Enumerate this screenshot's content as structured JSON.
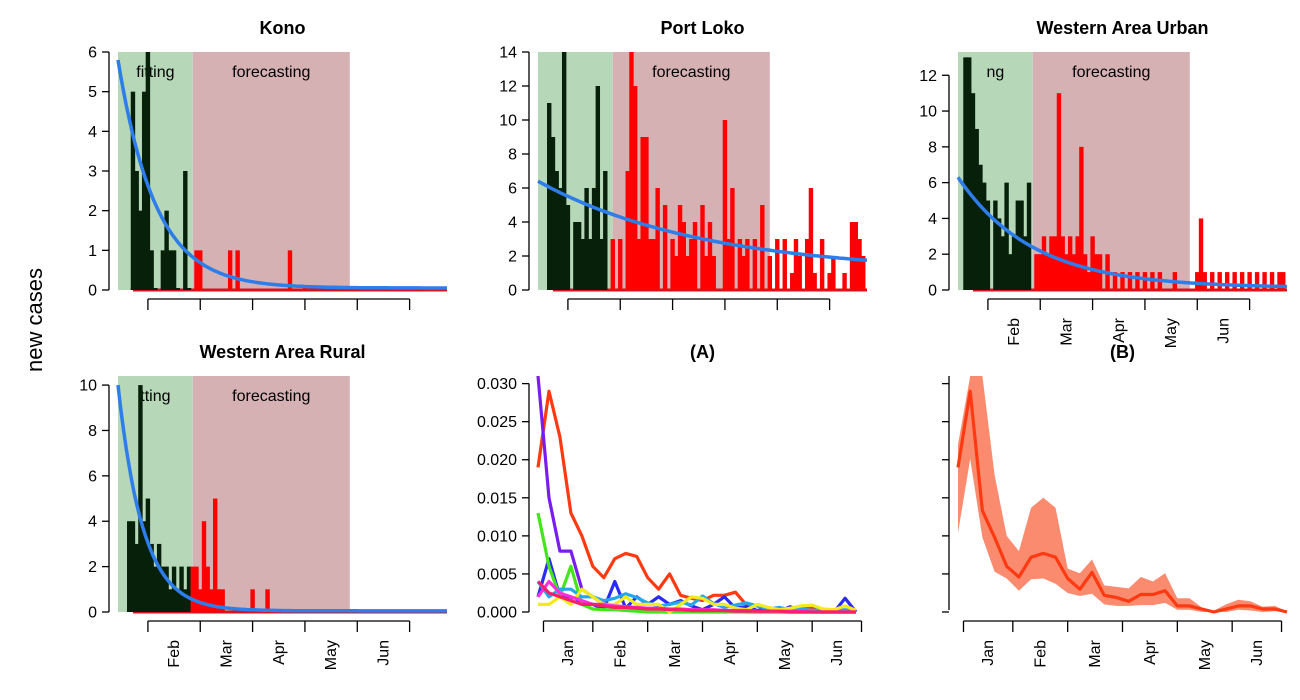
{
  "figure": {
    "ylabel": "new cases"
  },
  "colors": {
    "fit_region": "#b6d7b8",
    "forecast_region": "#d5b1b4",
    "observed_fit": "#06200a",
    "observed_forecast": "#ff0000",
    "trend": "#2d7dea",
    "band": "#fa8b6e",
    "mean_line": "#ff3a12"
  },
  "chart_data": [
    {
      "type": "bar",
      "title": "Kono",
      "fit_label": "fitting",
      "forecast_label": "forecasting",
      "fit_range": [
        0,
        10
      ],
      "forecast_range": [
        10,
        31
      ],
      "xlim": [
        0,
        44
      ],
      "ylim": [
        0,
        6
      ],
      "yticks": [
        "0",
        "1",
        "2",
        "3",
        "4",
        "5",
        "6"
      ],
      "xticks_at": [
        4,
        11,
        18,
        25,
        32,
        39
      ],
      "xtick_labels": [],
      "observed": [
        [
          2,
          0
        ],
        [
          2,
          5
        ],
        [
          2.5,
          3
        ],
        [
          3,
          2
        ],
        [
          3.5,
          5
        ],
        [
          4,
          6
        ],
        [
          4.5,
          1
        ],
        [
          5,
          0
        ],
        [
          6,
          1
        ],
        [
          6.5,
          2
        ],
        [
          7,
          1
        ],
        [
          7.5,
          1
        ],
        [
          8,
          0
        ],
        [
          9,
          3
        ],
        [
          9.5,
          0
        ],
        [
          10.5,
          1
        ],
        [
          11,
          1
        ],
        [
          15,
          1
        ],
        [
          16,
          1
        ],
        [
          23,
          1
        ],
        [
          25,
          0
        ]
      ],
      "trend": {
        "start": 5.8,
        "end": 0.05,
        "decay": 0.2
      }
    },
    {
      "type": "bar",
      "title": "Port Loko",
      "fit_label": "",
      "forecast_label": "forecasting",
      "fit_range": [
        0,
        10
      ],
      "forecast_range": [
        10,
        31
      ],
      "xlim": [
        0,
        44
      ],
      "ylim": [
        0,
        14
      ],
      "yticks": [
        "0",
        "2",
        "4",
        "6",
        "8",
        "10",
        "12",
        "14"
      ],
      "xticks_at": [
        4,
        11,
        18,
        25,
        32,
        39
      ],
      "xtick_labels": [],
      "observed": [
        [
          1.5,
          11
        ],
        [
          2,
          9
        ],
        [
          2.5,
          7
        ],
        [
          3,
          6
        ],
        [
          3.5,
          14
        ],
        [
          4,
          5
        ],
        [
          5,
          4
        ],
        [
          5.5,
          4
        ],
        [
          6,
          3
        ],
        [
          6.5,
          6
        ],
        [
          7,
          3
        ],
        [
          7.5,
          6
        ],
        [
          8,
          12
        ],
        [
          8.5,
          3
        ],
        [
          9,
          7
        ],
        [
          10,
          3
        ],
        [
          11,
          3
        ],
        [
          12,
          7
        ],
        [
          12.5,
          14
        ],
        [
          13,
          12
        ],
        [
          13.5,
          3
        ],
        [
          14,
          9
        ],
        [
          14.5,
          9
        ],
        [
          15,
          3
        ],
        [
          15.5,
          3
        ],
        [
          16,
          6
        ],
        [
          17,
          5
        ],
        [
          18,
          3
        ],
        [
          18.5,
          2
        ],
        [
          19,
          5
        ],
        [
          19.5,
          4
        ],
        [
          20,
          2
        ],
        [
          20.5,
          3
        ],
        [
          21,
          4
        ],
        [
          22,
          5
        ],
        [
          22.5,
          2
        ],
        [
          23,
          4
        ],
        [
          23.5,
          2
        ],
        [
          25,
          10
        ],
        [
          25.5,
          3
        ],
        [
          26,
          6
        ],
        [
          27,
          3
        ],
        [
          27.5,
          2
        ],
        [
          28,
          3
        ],
        [
          29,
          3
        ],
        [
          30,
          5
        ],
        [
          31,
          2
        ],
        [
          32,
          3
        ],
        [
          33,
          3
        ],
        [
          34,
          1
        ],
        [
          34.5,
          3
        ],
        [
          35,
          2
        ],
        [
          36,
          3
        ],
        [
          36.5,
          6
        ],
        [
          37,
          1
        ],
        [
          38,
          3
        ],
        [
          39,
          1
        ],
        [
          39.5,
          2
        ],
        [
          41,
          1
        ],
        [
          42,
          4
        ],
        [
          42.5,
          4
        ],
        [
          43,
          3
        ],
        [
          43.5,
          2
        ]
      ],
      "trend": {
        "start": 6.4,
        "end": 1.0,
        "decay": 0.045
      }
    },
    {
      "type": "bar",
      "title": "Western Area Urban",
      "fit_label": "ng",
      "forecast_label": "forecasting",
      "fit_range": [
        0,
        10
      ],
      "forecast_range": [
        10,
        31
      ],
      "xlim": [
        0,
        44
      ],
      "ylim": [
        0,
        13.3
      ],
      "yticks": [
        "0",
        "2",
        "4",
        "6",
        "8",
        "10",
        "12"
      ],
      "xticks_at": [
        4,
        11,
        18,
        25,
        32,
        39
      ],
      "xtick_labels": [
        "Feb",
        "Mar",
        "Apr",
        "May",
        "Jun"
      ],
      "observed": [
        [
          1,
          13
        ],
        [
          1.5,
          13
        ],
        [
          2,
          11
        ],
        [
          2.5,
          9
        ],
        [
          3,
          7
        ],
        [
          3.5,
          6
        ],
        [
          4,
          5
        ],
        [
          5,
          5
        ],
        [
          5.5,
          4
        ],
        [
          6,
          3
        ],
        [
          6.5,
          6
        ],
        [
          7,
          2
        ],
        [
          7.5,
          3
        ],
        [
          8,
          5
        ],
        [
          8.5,
          5
        ],
        [
          9,
          3
        ],
        [
          9.5,
          6
        ],
        [
          10.5,
          2
        ],
        [
          11,
          2
        ],
        [
          11.5,
          3
        ],
        [
          12,
          2
        ],
        [
          12.5,
          3
        ],
        [
          13,
          3
        ],
        [
          13.5,
          11
        ],
        [
          14,
          3
        ],
        [
          14.5,
          2
        ],
        [
          15,
          3
        ],
        [
          15.5,
          2
        ],
        [
          16,
          3
        ],
        [
          16.5,
          8
        ],
        [
          17,
          2
        ],
        [
          17.5,
          1
        ],
        [
          18,
          3
        ],
        [
          18.5,
          2
        ],
        [
          19,
          2
        ],
        [
          20,
          2
        ],
        [
          21,
          1
        ],
        [
          22,
          1
        ],
        [
          23,
          1
        ],
        [
          24,
          1
        ],
        [
          25,
          1
        ],
        [
          26,
          1
        ],
        [
          27,
          1
        ],
        [
          29,
          1
        ],
        [
          32,
          1
        ],
        [
          32.5,
          4
        ],
        [
          33,
          1
        ],
        [
          34,
          1
        ],
        [
          35,
          1
        ],
        [
          36,
          1
        ],
        [
          37,
          1
        ],
        [
          38,
          1
        ],
        [
          39,
          1
        ],
        [
          40,
          1
        ],
        [
          41,
          1
        ],
        [
          42,
          1
        ],
        [
          43,
          1
        ],
        [
          43.5,
          1
        ]
      ],
      "trend": {
        "start": 6.3,
        "end": 0.12,
        "decay": 0.1
      }
    },
    {
      "type": "bar",
      "title": "Western Area Rural",
      "fit_label": "tting",
      "forecast_label": "forecasting",
      "fit_range": [
        0,
        10
      ],
      "forecast_range": [
        10,
        31
      ],
      "xlim": [
        0,
        44
      ],
      "ylim": [
        0,
        10.4
      ],
      "yticks": [
        "0",
        "2",
        "4",
        "6",
        "8",
        "10"
      ],
      "xticks_at": [
        4,
        11,
        18,
        25,
        32,
        39
      ],
      "xtick_labels": [
        "Feb",
        "Mar",
        "Apr",
        "May",
        "Jun"
      ],
      "observed": [
        [
          1.5,
          4
        ],
        [
          2,
          4
        ],
        [
          2.5,
          3
        ],
        [
          3,
          10
        ],
        [
          3.5,
          4
        ],
        [
          4,
          5
        ],
        [
          4.5,
          3
        ],
        [
          5,
          2
        ],
        [
          5.5,
          3
        ],
        [
          6,
          2
        ],
        [
          6.5,
          2
        ],
        [
          7,
          1
        ],
        [
          7.5,
          2
        ],
        [
          8,
          1
        ],
        [
          8.5,
          2
        ],
        [
          9,
          1
        ],
        [
          9.5,
          2
        ],
        [
          10,
          2
        ],
        [
          10.5,
          2
        ],
        [
          11,
          1
        ],
        [
          11.5,
          4
        ],
        [
          12,
          2
        ],
        [
          12.5,
          1
        ],
        [
          13,
          5
        ],
        [
          13.5,
          1
        ],
        [
          14,
          1
        ],
        [
          18,
          1
        ],
        [
          20,
          1
        ]
      ],
      "trend": {
        "start": 10.0,
        "end": 0.05,
        "decay": 0.3
      }
    },
    {
      "type": "line",
      "title": "(A)",
      "xlim": [
        0,
        30
      ],
      "ylim": [
        0,
        0.031
      ],
      "yticks": [
        "0.000",
        "0.005",
        "0.010",
        "0.015",
        "0.020",
        "0.025",
        "0.030"
      ],
      "xticks_at": [
        0.5,
        5,
        10,
        15,
        20,
        25,
        29.5
      ],
      "xtick_labels": [
        "Jan",
        "Feb",
        "Mar",
        "Apr",
        "May",
        "Jun"
      ],
      "series": [
        {
          "color": "#ff3a12",
          "values": [
            0.019,
            0.029,
            0.023,
            0.013,
            0.01,
            0.006,
            0.0045,
            0.007,
            0.0077,
            0.0073,
            0.0045,
            0.003,
            0.005,
            0.0022,
            0.0018,
            0.0015,
            0.0022,
            0.0022,
            0.0026,
            0.0009,
            0.0008,
            0.0004,
            0.0001,
            0.0005,
            0.0007,
            0.0006,
            0.0002,
            0.0003,
            0.0001,
            0.0
          ]
        },
        {
          "color": "#7a1cf0",
          "values": [
            0.031,
            0.015,
            0.008,
            0.008,
            0.003,
            0.002,
            0.001,
            0.0005,
            0.0006,
            0.0003,
            0.0003,
            0.0001,
            0.0003,
            0.0001,
            0.0001,
            0.0,
            0.0001,
            0.0,
            0.0001,
            0.0,
            0.0,
            0.0,
            0.0,
            0.0,
            0.0,
            0.0,
            0.0,
            0.0,
            0.0,
            0.0
          ]
        },
        {
          "color": "#2b2bf2",
          "values": [
            0.002,
            0.007,
            0.002,
            0.002,
            0.001,
            0.001,
            0.0004,
            0.004,
            0.0005,
            0.002,
            0.001,
            0.002,
            0.001,
            0.0015,
            0.0008,
            0.0003,
            0.001,
            0.002,
            0.0005,
            0.0007,
            0.0002,
            0.0005,
            0.0001,
            0.0007,
            0.0002,
            0.0002,
            0.0002,
            0.0,
            0.0018,
            0.0
          ]
        },
        {
          "color": "#44e51a",
          "values": [
            0.013,
            0.006,
            0.002,
            0.006,
            0.001,
            0.0004,
            0.0003,
            0.0003,
            0.0002,
            0.0001,
            0.0,
            0.0,
            0.0,
            0.0,
            0.0,
            0.0,
            0.0,
            0.0,
            0.0,
            0.0,
            0.0,
            0.0,
            0.0,
            0.0,
            0.0,
            0.0,
            0.0,
            0.0,
            0.0,
            0.0
          ]
        },
        {
          "color": "#22a8ee",
          "values": [
            0.004,
            0.002,
            0.003,
            0.003,
            0.002,
            0.002,
            0.0015,
            0.0018,
            0.0024,
            0.0019,
            0.0012,
            0.0008,
            0.001,
            0.0013,
            0.0009,
            0.0021,
            0.0011,
            0.0006,
            0.0009,
            0.0012,
            0.0008,
            0.0004,
            0.0006,
            0.0003,
            0.0004,
            0.0002,
            0.0004,
            0.0002,
            0.0003,
            0.0002
          ]
        },
        {
          "color": "#f2ea1c",
          "values": [
            0.001,
            0.001,
            0.002,
            0.001,
            0.003,
            0.002,
            0.001,
            0.001,
            0.002,
            0.001,
            0.001,
            0.001,
            0.0,
            0.001,
            0.002,
            0.0018,
            0.001,
            0.001,
            0.0005,
            0.0003,
            0.001,
            0.0006,
            0.0003,
            0.0005,
            0.0008,
            0.0009,
            0.0004,
            0.0003,
            0.0008,
            0.0002
          ]
        },
        {
          "color": "#ff2fe0",
          "values": [
            0.002,
            0.004,
            0.0025,
            0.002,
            0.0015,
            0.001,
            0.001,
            0.0008,
            0.0007,
            0.0006,
            0.0005,
            0.0005,
            0.0004,
            0.0004,
            0.0003,
            0.0003,
            0.0003,
            0.0002,
            0.0002,
            0.0002,
            0.0001,
            0.0001,
            0.0001,
            0.0001,
            0.0001,
            0.0,
            0.0,
            0.0,
            0.0,
            0.0
          ]
        },
        {
          "color": "#ff1d6c",
          "values": [
            0.004,
            0.0025,
            0.002,
            0.0015,
            0.001,
            0.001,
            0.0008,
            0.0006,
            0.0006,
            0.0005,
            0.0004,
            0.0004,
            0.0003,
            0.0003,
            0.0002,
            0.0002,
            0.0002,
            0.0002,
            0.0001,
            0.0001,
            0.0001,
            0.0001,
            0.0001,
            0.0,
            0.0,
            0.0,
            0.0,
            0.0,
            0.0,
            0.0
          ]
        }
      ]
    },
    {
      "type": "area",
      "title": "(B)",
      "xlim": [
        0,
        30
      ],
      "ylim": [
        0,
        0.031
      ],
      "yticks": [],
      "xticks_at": [
        0.5,
        5,
        10,
        15,
        20,
        25,
        29.5
      ],
      "xtick_labels": [
        "Jan",
        "Feb",
        "Mar",
        "Apr",
        "May",
        "Jun"
      ],
      "mean": [
        0.019,
        0.029,
        0.0133,
        0.0098,
        0.006,
        0.0046,
        0.0072,
        0.0077,
        0.0072,
        0.0044,
        0.003,
        0.0052,
        0.0022,
        0.0019,
        0.0014,
        0.0023,
        0.0023,
        0.0028,
        0.0008,
        0.0008,
        0.0004,
        0.0,
        0.0004,
        0.0008,
        0.0008,
        0.0004,
        0.0004,
        0.0
      ],
      "upper": [
        0.022,
        0.031,
        0.031,
        0.018,
        0.01,
        0.008,
        0.0137,
        0.015,
        0.0137,
        0.0057,
        0.0051,
        0.0069,
        0.0035,
        0.0033,
        0.0031,
        0.0046,
        0.004,
        0.0051,
        0.0018,
        0.0018,
        0.0006,
        0.0002,
        0.001,
        0.0016,
        0.0014,
        0.0007,
        0.0008,
        0.0001
      ],
      "lower": [
        0.0104,
        0.0201,
        0.0098,
        0.0053,
        0.0044,
        0.0028,
        0.0043,
        0.0044,
        0.0037,
        0.0025,
        0.0021,
        0.0024,
        0.001,
        0.0008,
        0.0008,
        0.0009,
        0.0009,
        0.0012,
        0.0003,
        0.0003,
        0.0,
        0.0,
        0.0,
        0.0003,
        0.0002,
        0.0,
        0.0001,
        0.0
      ]
    }
  ]
}
